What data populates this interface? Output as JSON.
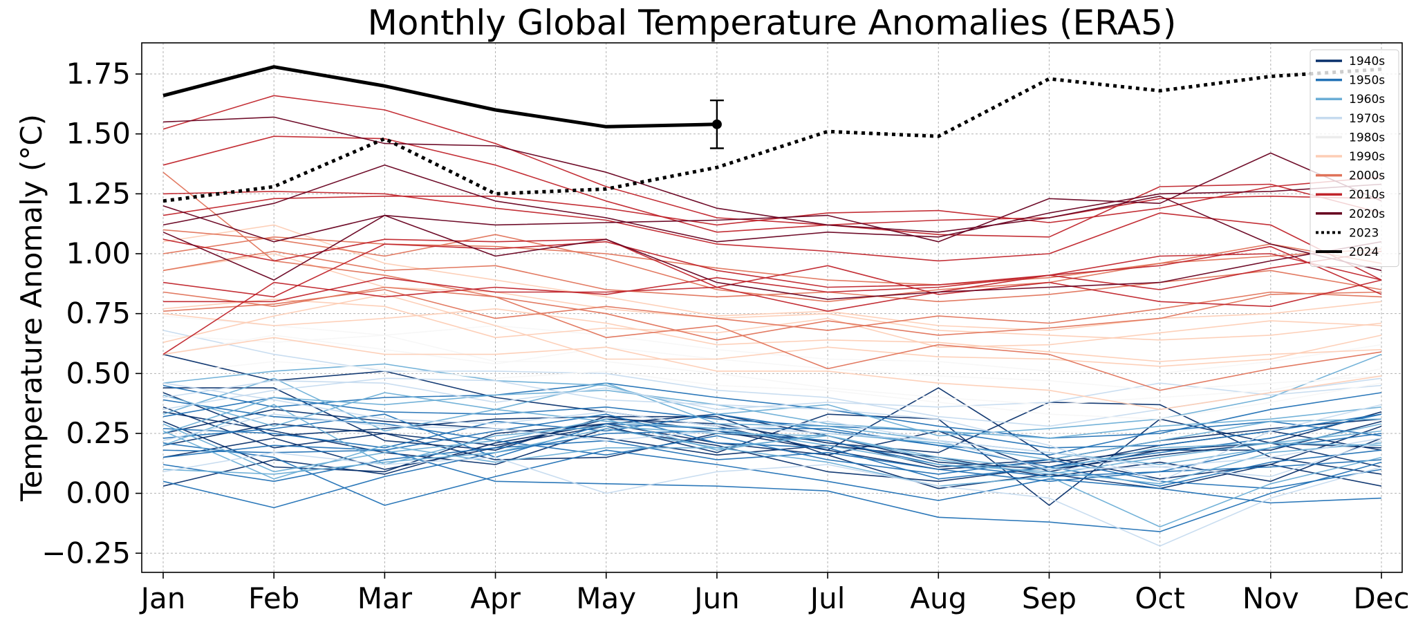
{
  "chart_data": {
    "type": "line",
    "title": "Monthly Global Temperature Anomalies (ERA5)",
    "xlabel": "",
    "ylabel": "Temperature Anomaly (°C)",
    "categories": [
      "Jan",
      "Feb",
      "Mar",
      "Apr",
      "May",
      "Jun",
      "Jul",
      "Aug",
      "Sep",
      "Oct",
      "Nov",
      "Dec"
    ],
    "ylim": [
      -0.33,
      1.88
    ],
    "yticks": [
      -0.25,
      0.0,
      0.25,
      0.5,
      0.75,
      1.0,
      1.25,
      1.5,
      1.75
    ],
    "ytick_labels": [
      "−0.25",
      "0.00",
      "0.25",
      "0.50",
      "0.75",
      "1.00",
      "1.25",
      "1.50",
      "1.75"
    ],
    "grid": true,
    "legend_position": "top-right",
    "legend": [
      {
        "label": "1940s",
        "color": "#08306b",
        "style": "solid"
      },
      {
        "label": "1950s",
        "color": "#2171b5",
        "style": "solid"
      },
      {
        "label": "1960s",
        "color": "#6baed6",
        "style": "solid"
      },
      {
        "label": "1970s",
        "color": "#c6dbef",
        "style": "solid"
      },
      {
        "label": "1980s",
        "color": "#f7f7f7",
        "style": "solid"
      },
      {
        "label": "1990s",
        "color": "#fdcdb5",
        "style": "solid"
      },
      {
        "label": "2000s",
        "color": "#e0735a",
        "style": "solid"
      },
      {
        "label": "2010s",
        "color": "#c0242b",
        "style": "solid"
      },
      {
        "label": "2020s",
        "color": "#67001f",
        "style": "solid"
      },
      {
        "label": "2023",
        "color": "#000000",
        "style": "dotted"
      },
      {
        "label": "2024",
        "color": "#000000",
        "style": "thick"
      }
    ],
    "highlight_series": [
      {
        "name": "2023",
        "style": "dotted",
        "values": [
          1.22,
          1.28,
          1.48,
          1.25,
          1.27,
          1.36,
          1.51,
          1.49,
          1.73,
          1.68,
          1.74,
          1.77
        ]
      },
      {
        "name": "2024",
        "style": "thick",
        "values": [
          1.66,
          1.78,
          1.7,
          1.6,
          1.53,
          1.54
        ]
      }
    ],
    "error_bar": {
      "month": "Jun",
      "value": 1.54,
      "low": 1.44,
      "high": 1.64
    },
    "series": [
      {
        "decade": "1940s",
        "values": [
          0.42,
          0.24,
          0.27,
          0.31,
          0.32,
          0.26,
          0.18,
          0.1,
          0.13,
          0.18,
          0.21,
          0.19
        ]
      },
      {
        "decade": "1940s",
        "values": [
          0.03,
          0.14,
          0.08,
          0.21,
          0.29,
          0.33,
          0.24,
          0.13,
          0.1,
          0.16,
          0.21,
          0.11
        ]
      },
      {
        "decade": "1940s",
        "values": [
          0.58,
          0.47,
          0.51,
          0.4,
          0.34,
          0.28,
          0.18,
          0.44,
          0.15,
          0.06,
          0.12,
          0.28
        ]
      },
      {
        "decade": "1940s",
        "values": [
          0.34,
          0.26,
          0.17,
          0.12,
          0.27,
          0.2,
          0.09,
          0.05,
          0.11,
          0.2,
          0.26,
          0.18
        ]
      },
      {
        "decade": "1940s",
        "values": [
          0.15,
          0.23,
          0.1,
          0.19,
          0.31,
          0.29,
          0.21,
          0.17,
          0.38,
          0.37,
          0.15,
          0.08
        ]
      },
      {
        "decade": "1940s",
        "values": [
          0.3,
          0.11,
          0.09,
          0.25,
          0.29,
          0.21,
          0.16,
          0.02,
          0.08,
          0.02,
          0.12,
          0.03
        ]
      },
      {
        "decade": "1940s",
        "values": [
          0.44,
          0.44,
          0.22,
          0.18,
          0.32,
          0.32,
          0.16,
          0.26,
          0.09,
          0.18,
          0.18,
          0.3
        ]
      },
      {
        "decade": "1940s",
        "values": [
          0.2,
          0.29,
          0.25,
          0.14,
          0.15,
          0.25,
          0.22,
          0.11,
          0.14,
          0.22,
          0.27,
          0.31
        ]
      },
      {
        "decade": "1940s",
        "values": [
          0.36,
          0.19,
          0.25,
          0.2,
          0.28,
          0.17,
          0.33,
          0.31,
          -0.05,
          0.31,
          0.21,
          0.34
        ]
      },
      {
        "decade": "1940s",
        "values": [
          0.25,
          0.35,
          0.3,
          0.27,
          0.23,
          0.16,
          0.2,
          0.15,
          0.07,
          0.13,
          0.05,
          0.23
        ]
      },
      {
        "decade": "1950s",
        "values": [
          0.05,
          -0.06,
          0.07,
          0.17,
          0.25,
          0.26,
          0.22,
          0.12,
          0.07,
          0.09,
          0.19,
          0.25
        ]
      },
      {
        "decade": "1950s",
        "values": [
          0.18,
          0.17,
          0.18,
          0.05,
          0.04,
          0.03,
          0.01,
          -0.1,
          -0.12,
          -0.16,
          0.0,
          0.13
        ]
      },
      {
        "decade": "1950s",
        "values": [
          0.21,
          0.15,
          -0.05,
          0.07,
          0.18,
          0.12,
          0.05,
          -0.03,
          0.06,
          0.02,
          -0.04,
          -0.02
        ]
      },
      {
        "decade": "1950s",
        "values": [
          0.32,
          0.4,
          0.34,
          0.33,
          0.36,
          0.31,
          0.28,
          0.26,
          0.19,
          0.2,
          0.26,
          0.33
        ]
      },
      {
        "decade": "1950s",
        "values": [
          0.45,
          0.36,
          0.4,
          0.41,
          0.46,
          0.4,
          0.35,
          0.28,
          0.23,
          0.25,
          0.35,
          0.42
        ]
      },
      {
        "decade": "1950s",
        "values": [
          0.12,
          0.05,
          0.14,
          0.19,
          0.22,
          0.14,
          0.17,
          0.1,
          0.05,
          0.09,
          0.11,
          0.14
        ]
      },
      {
        "decade": "1950s",
        "values": [
          0.27,
          0.25,
          0.19,
          0.3,
          0.26,
          0.33,
          0.26,
          0.2,
          0.11,
          0.17,
          0.23,
          0.33
        ]
      },
      {
        "decade": "1950s",
        "values": [
          0.39,
          0.32,
          0.29,
          0.22,
          0.16,
          0.24,
          0.14,
          0.08,
          0.14,
          0.05,
          0.02,
          0.1
        ]
      },
      {
        "decade": "1950s",
        "values": [
          0.23,
          0.27,
          0.33,
          0.15,
          0.29,
          0.27,
          0.27,
          0.2,
          0.16,
          0.26,
          0.3,
          0.24
        ]
      },
      {
        "decade": "1950s",
        "values": [
          0.15,
          0.2,
          0.18,
          0.26,
          0.33,
          0.21,
          0.19,
          0.06,
          0.11,
          0.03,
          0.13,
          0.18
        ]
      },
      {
        "decade": "1960s",
        "values": [
          0.46,
          0.51,
          0.54,
          0.47,
          0.45,
          0.33,
          0.37,
          0.24,
          0.27,
          0.31,
          0.4,
          0.58
        ]
      },
      {
        "decade": "1960s",
        "values": [
          0.26,
          0.06,
          0.2,
          0.13,
          0.19,
          0.19,
          0.24,
          0.15,
          0.1,
          0.19,
          0.21,
          0.26
        ]
      },
      {
        "decade": "1960s",
        "values": [
          0.33,
          0.48,
          0.26,
          0.35,
          0.46,
          0.29,
          0.28,
          0.22,
          0.17,
          0.12,
          0.19,
          0.29
        ]
      },
      {
        "decade": "1960s",
        "values": [
          0.2,
          0.37,
          0.12,
          0.24,
          0.28,
          0.25,
          0.24,
          0.14,
          0.08,
          0.15,
          0.21,
          0.2
        ]
      },
      {
        "decade": "1960s",
        "values": [
          0.29,
          0.09,
          0.17,
          0.22,
          0.31,
          0.18,
          0.25,
          0.21,
          0.14,
          0.22,
          0.3,
          0.31
        ]
      },
      {
        "decade": "1960s",
        "values": [
          0.41,
          0.28,
          0.42,
          0.35,
          0.3,
          0.27,
          0.2,
          0.12,
          0.09,
          0.04,
          0.17,
          0.21
        ]
      },
      {
        "decade": "1960s",
        "values": [
          0.1,
          0.08,
          0.13,
          0.17,
          0.27,
          0.19,
          0.13,
          0.03,
          0.07,
          -0.14,
          0.04,
          0.15
        ]
      },
      {
        "decade": "1960s",
        "values": [
          0.25,
          0.4,
          0.37,
          0.41,
          0.43,
          0.37,
          0.29,
          0.26,
          0.23,
          0.28,
          0.31,
          0.36
        ]
      },
      {
        "decade": "1970s",
        "values": [
          0.4,
          0.47,
          0.46,
          0.38,
          0.44,
          0.35,
          0.38,
          0.36,
          0.38,
          0.46,
          0.41,
          0.45
        ]
      },
      {
        "decade": "1970s",
        "values": [
          0.22,
          0.33,
          0.28,
          0.27,
          0.22,
          0.26,
          0.3,
          0.22,
          0.1,
          0.11,
          0.15,
          0.23
        ]
      },
      {
        "decade": "1970s",
        "values": [
          0.09,
          0.17,
          0.12,
          0.15,
          0.0,
          0.09,
          0.12,
          0.03,
          -0.02,
          -0.22,
          -0.02,
          0.11
        ]
      },
      {
        "decade": "1970s",
        "values": [
          0.35,
          0.43,
          0.48,
          0.47,
          0.39,
          0.37,
          0.35,
          0.31,
          0.2,
          0.05,
          0.26,
          0.37
        ]
      },
      {
        "decade": "1970s",
        "values": [
          0.46,
          0.39,
          0.31,
          0.29,
          0.34,
          0.28,
          0.25,
          0.22,
          0.17,
          0.11,
          0.07,
          0.22
        ]
      },
      {
        "decade": "1970s",
        "values": [
          0.68,
          0.58,
          0.51,
          0.51,
          0.5,
          0.43,
          0.4,
          0.32,
          0.28,
          0.35,
          0.42,
          0.48
        ]
      },
      {
        "decade": "1980s",
        "values": [
          0.66,
          0.63,
          0.66,
          0.55,
          0.55,
          0.5,
          0.44,
          0.4,
          0.37,
          0.4,
          0.43,
          0.52
        ]
      },
      {
        "decade": "1980s",
        "values": [
          0.58,
          0.66,
          0.6,
          0.54,
          0.61,
          0.56,
          0.52,
          0.49,
          0.47,
          0.43,
          0.46,
          0.49
        ]
      },
      {
        "decade": "1980s",
        "values": [
          0.74,
          0.7,
          0.66,
          0.7,
          0.66,
          0.6,
          0.56,
          0.55,
          0.51,
          0.5,
          0.55,
          0.62
        ]
      },
      {
        "decade": "1980s",
        "values": [
          0.5,
          0.55,
          0.52,
          0.48,
          0.51,
          0.45,
          0.43,
          0.38,
          0.33,
          0.31,
          0.38,
          0.46
        ]
      },
      {
        "decade": "1990s",
        "values": [
          0.75,
          0.7,
          0.73,
          0.77,
          0.71,
          0.62,
          0.64,
          0.63,
          0.59,
          0.55,
          0.58,
          0.6
        ]
      },
      {
        "decade": "1990s",
        "values": [
          0.58,
          0.65,
          0.58,
          0.58,
          0.61,
          0.51,
          0.51,
          0.46,
          0.43,
          0.35,
          0.42,
          0.49
        ]
      },
      {
        "decade": "1990s",
        "values": [
          0.93,
          1.0,
          0.86,
          0.84,
          0.77,
          0.73,
          0.75,
          0.68,
          0.66,
          0.64,
          0.66,
          0.71
        ]
      },
      {
        "decade": "1990s",
        "values": [
          0.63,
          0.74,
          0.83,
          0.7,
          0.56,
          0.56,
          0.61,
          0.57,
          0.56,
          0.53,
          0.56,
          0.66
        ]
      },
      {
        "decade": "1990s",
        "values": [
          1.05,
          1.12,
          0.96,
          0.89,
          0.82,
          0.74,
          0.76,
          0.7,
          0.68,
          0.73,
          0.75,
          0.8
        ]
      },
      {
        "decade": "1990s",
        "values": [
          0.77,
          0.81,
          0.78,
          0.65,
          0.69,
          0.67,
          0.73,
          0.61,
          0.62,
          0.67,
          0.72,
          0.7
        ]
      },
      {
        "decade": "2000s",
        "values": [
          0.84,
          0.78,
          0.86,
          0.82,
          0.75,
          0.64,
          0.72,
          0.66,
          0.69,
          0.73,
          0.83,
          0.84
        ]
      },
      {
        "decade": "2000s",
        "values": [
          0.93,
          1.01,
          0.93,
          0.95,
          0.85,
          0.82,
          0.84,
          0.8,
          0.83,
          0.88,
          0.93,
          0.85
        ]
      },
      {
        "decade": "2000s",
        "values": [
          1.1,
          1.06,
          0.99,
          1.08,
          0.98,
          0.85,
          0.8,
          0.85,
          0.88,
          0.96,
          0.99,
          1.02
        ]
      },
      {
        "decade": "2000s",
        "values": [
          1.34,
          0.97,
          0.91,
          0.82,
          0.65,
          0.7,
          0.52,
          0.62,
          0.58,
          0.43,
          0.52,
          0.59
        ]
      },
      {
        "decade": "2000s",
        "values": [
          0.76,
          0.79,
          0.85,
          0.73,
          0.78,
          0.73,
          0.68,
          0.74,
          0.71,
          0.77,
          0.84,
          0.82
        ]
      },
      {
        "decade": "2000s",
        "values": [
          1.0,
          1.07,
          1.04,
          1.03,
          1.0,
          0.94,
          0.89,
          0.87,
          0.9,
          0.96,
          1.04,
          0.96
        ]
      },
      {
        "decade": "2010s",
        "values": [
          1.16,
          1.23,
          1.24,
          1.24,
          1.19,
          1.12,
          1.17,
          1.18,
          1.13,
          1.19,
          1.28,
          1.32
        ]
      },
      {
        "decade": "2010s",
        "values": [
          0.88,
          0.82,
          1.04,
          1.02,
          1.05,
          0.93,
          0.86,
          0.87,
          0.91,
          0.99,
          1.0,
          0.89
        ]
      },
      {
        "decade": "2010s",
        "values": [
          1.25,
          1.26,
          1.25,
          1.19,
          1.14,
          1.04,
          1.01,
          0.97,
          1.0,
          1.17,
          1.12,
          0.89
        ]
      },
      {
        "decade": "2010s",
        "values": [
          1.37,
          1.49,
          1.48,
          1.37,
          1.22,
          1.09,
          1.12,
          1.08,
          1.07,
          1.28,
          1.29,
          1.17
        ]
      },
      {
        "decade": "2010s",
        "values": [
          1.52,
          1.66,
          1.6,
          1.46,
          1.28,
          1.15,
          1.12,
          1.14,
          1.15,
          1.23,
          1.24,
          1.23
        ]
      },
      {
        "decade": "2010s",
        "values": [
          0.8,
          0.8,
          0.9,
          0.84,
          0.84,
          0.86,
          0.76,
          0.84,
          0.91,
          0.95,
          1.03,
          0.83
        ]
      },
      {
        "decade": "2010s",
        "values": [
          1.06,
          0.97,
          1.06,
          1.05,
          1.06,
          0.86,
          0.95,
          0.83,
          0.88,
          0.8,
          0.78,
          0.89
        ]
      },
      {
        "decade": "2010s",
        "values": [
          0.58,
          0.88,
          0.82,
          0.86,
          0.83,
          0.9,
          0.84,
          0.86,
          0.91,
          0.85,
          0.94,
          1.01
        ]
      },
      {
        "decade": "2020s",
        "values": [
          1.55,
          1.57,
          1.46,
          1.45,
          1.34,
          1.19,
          1.12,
          1.09,
          1.15,
          1.24,
          1.04,
          0.93
        ]
      },
      {
        "decade": "2020s",
        "values": [
          1.2,
          1.05,
          1.16,
          1.12,
          1.13,
          1.14,
          1.16,
          1.05,
          1.23,
          1.21,
          1.42,
          1.22
        ]
      },
      {
        "decade": "2020s",
        "values": [
          1.12,
          1.21,
          1.37,
          1.22,
          1.15,
          1.05,
          1.09,
          1.07,
          1.17,
          1.25,
          1.26,
          1.29
        ]
      },
      {
        "decade": "2020s",
        "values": [
          1.09,
          0.89,
          1.16,
          0.99,
          1.06,
          0.88,
          0.81,
          0.84,
          0.86,
          0.88,
          0.97,
          1.05
        ]
      }
    ]
  }
}
